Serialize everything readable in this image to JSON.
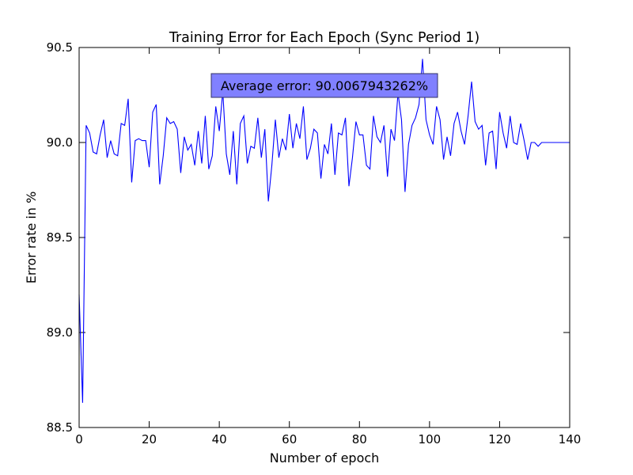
{
  "chart_data": {
    "type": "line",
    "title": "Training Error for Each Epoch (Sync Period 1)",
    "xlabel": "Number of epoch",
    "ylabel": "Error rate in %",
    "xlim": [
      0,
      140
    ],
    "ylim": [
      88.5,
      90.5
    ],
    "x_ticks": [
      "0",
      "20",
      "40",
      "60",
      "80",
      "100",
      "120",
      "140"
    ],
    "y_ticks": [
      "88.5",
      "89.0",
      "89.5",
      "90.0",
      "90.5"
    ],
    "grid": false,
    "line_color": "#0000ff",
    "annotation": {
      "text": "Average error: 90.0067943262%",
      "x": 70,
      "y": 90.29,
      "box_color": "#8080ff"
    },
    "series": [
      {
        "x": [
          0,
          1,
          2,
          3,
          4,
          5,
          6,
          7,
          8,
          9,
          10,
          11,
          12,
          13,
          14,
          15,
          16,
          17,
          18,
          19,
          20,
          21,
          22,
          23,
          24,
          25,
          26,
          27,
          28,
          29,
          30,
          31,
          32,
          33,
          34,
          35,
          36,
          37,
          38,
          39,
          40,
          41,
          42,
          43,
          44,
          45,
          46,
          47,
          48,
          49,
          50,
          51,
          52,
          53,
          54,
          55,
          56,
          57,
          58,
          59,
          60,
          61,
          62,
          63,
          64,
          65,
          66,
          67,
          68,
          69,
          70,
          71,
          72,
          73,
          74,
          75,
          76,
          77,
          78,
          79,
          80,
          81,
          82,
          83,
          84,
          85,
          86,
          87,
          88,
          89,
          90,
          91,
          92,
          93,
          94,
          95,
          96,
          97,
          98,
          99,
          100,
          101,
          102,
          103,
          104,
          105,
          106,
          107,
          108,
          109,
          110,
          111,
          112,
          113,
          114,
          115,
          116,
          117,
          118,
          119,
          120,
          121,
          122,
          123,
          124,
          125,
          126,
          127,
          128,
          129,
          130,
          131,
          132,
          133,
          134,
          135,
          136,
          137,
          138,
          139,
          140
        ],
        "y": [
          89.2,
          88.63,
          90.09,
          90.05,
          89.95,
          89.94,
          90.04,
          90.12,
          89.92,
          90.01,
          89.94,
          89.93,
          90.1,
          90.09,
          90.23,
          89.79,
          90.01,
          90.02,
          90.01,
          90.01,
          89.87,
          90.16,
          90.2,
          89.78,
          89.93,
          90.13,
          90.1,
          90.11,
          90.07,
          89.84,
          90.03,
          89.96,
          89.99,
          89.88,
          90.06,
          89.89,
          90.14,
          89.86,
          89.93,
          90.19,
          90.06,
          90.27,
          89.94,
          89.83,
          90.06,
          89.78,
          90.1,
          90.14,
          89.89,
          89.98,
          89.97,
          90.13,
          89.92,
          90.07,
          89.69,
          89.88,
          90.12,
          89.92,
          90.02,
          89.96,
          90.15,
          89.97,
          90.1,
          90.02,
          90.19,
          89.91,
          89.97,
          90.07,
          90.05,
          89.81,
          89.99,
          89.94,
          90.1,
          89.83,
          90.05,
          90.04,
          90.13,
          89.77,
          89.92,
          90.11,
          90.04,
          90.04,
          89.88,
          89.86,
          90.14,
          90.03,
          90.0,
          90.09,
          89.82,
          90.07,
          90.01,
          90.26,
          90.12,
          89.74,
          89.99,
          90.09,
          90.13,
          90.2,
          90.44,
          90.12,
          90.04,
          89.99,
          90.19,
          90.12,
          89.91,
          90.03,
          89.93,
          90.1,
          90.16,
          90.06,
          89.99,
          90.14,
          90.32,
          90.11,
          90.07,
          90.09,
          89.88,
          90.05,
          90.06,
          89.86,
          90.16,
          90.05,
          89.97,
          90.14,
          90.0,
          89.99,
          90.1,
          90.01,
          89.91,
          90.0,
          90.0,
          89.98,
          90.0,
          90.0,
          90.0,
          90.0,
          90.0,
          90.0,
          90.0,
          90.0,
          90.0
        ]
      }
    ]
  }
}
